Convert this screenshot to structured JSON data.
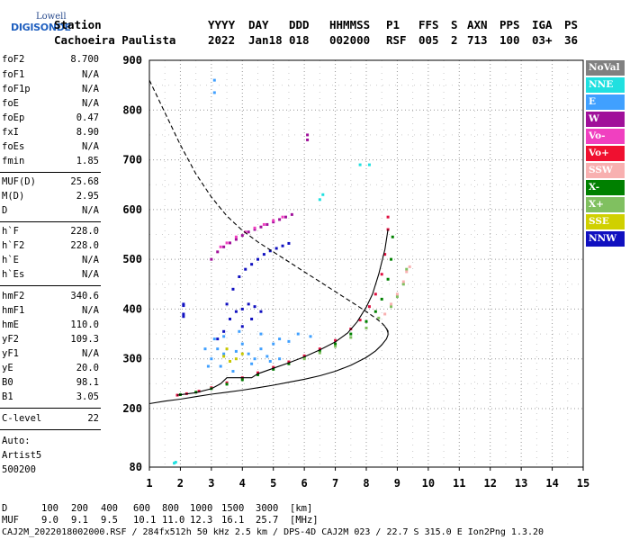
{
  "logo": {
    "line1": "Lowell",
    "line2": "DIGISONDE"
  },
  "header": {
    "row1": {
      "station": "Station",
      "yyyy": "YYYY",
      "day": "DAY",
      "ddd": "DDD",
      "hhmmss": "HHMMSS",
      "p1": "P1",
      "ffs": "FFS",
      "s": "S",
      "axn": "AXN",
      "pps": "PPS",
      "iga": "IGA",
      "ps": "PS"
    },
    "row2": {
      "station": "Cachoeira Paulista",
      "yyyy": "2022",
      "day": "Jan18",
      "ddd": "018",
      "hhmmss": "002000",
      "p1": "RSF",
      "ffs": "005",
      "s": "2",
      "axn": "713",
      "pps": "100",
      "iga": "03+",
      "ps": "36"
    }
  },
  "params": {
    "group1": [
      {
        "label": "foF2",
        "value": "8.700"
      },
      {
        "label": "foF1",
        "value": "N/A"
      },
      {
        "label": "foF1p",
        "value": "N/A"
      },
      {
        "label": "foE",
        "value": "N/A"
      },
      {
        "label": "foEp",
        "value": "0.47"
      },
      {
        "label": "fxI",
        "value": "8.90"
      },
      {
        "label": "foEs",
        "value": "N/A"
      },
      {
        "label": "fmin",
        "value": "1.85"
      }
    ],
    "group2": [
      {
        "label": "MUF(D)",
        "value": "25.68"
      },
      {
        "label": "M(D)",
        "value": "2.95"
      },
      {
        "label": "D",
        "value": "N/A"
      }
    ],
    "group3": [
      {
        "label": "h`F",
        "value": "228.0"
      },
      {
        "label": "h`F2",
        "value": "228.0"
      },
      {
        "label": "h`E",
        "value": "N/A"
      },
      {
        "label": "h`Es",
        "value": "N/A"
      }
    ],
    "group4": [
      {
        "label": "hmF2",
        "value": "340.6"
      },
      {
        "label": "hmF1",
        "value": "N/A"
      },
      {
        "label": "hmE",
        "value": "110.0"
      },
      {
        "label": "yF2",
        "value": "109.3"
      },
      {
        "label": "yF1",
        "value": "N/A"
      },
      {
        "label": "yE",
        "value": "20.0"
      },
      {
        "label": "B0",
        "value": "98.1"
      },
      {
        "label": "B1",
        "value": "3.05"
      }
    ],
    "group5": [
      {
        "label": "C-level",
        "value": "22"
      }
    ],
    "auto": [
      "Auto:",
      "Artist5",
      "500200"
    ]
  },
  "legend": [
    {
      "label": "NoVal",
      "bg": "#808080",
      "fg": "#ffffff"
    },
    {
      "label": "NNE",
      "bg": "#20e0e0",
      "fg": "#ffffff"
    },
    {
      "label": "E",
      "bg": "#40a0ff",
      "fg": "#ffffff"
    },
    {
      "label": "W",
      "bg": "#a0109a",
      "fg": "#ffffff"
    },
    {
      "label": "Vo-",
      "bg": "#f040c0",
      "fg": "#ffffff"
    },
    {
      "label": "Vo+",
      "bg": "#f01030",
      "fg": "#ffffff"
    },
    {
      "label": "SSW",
      "bg": "#f8b0b0",
      "fg": "#ffffff"
    },
    {
      "label": "X-",
      "bg": "#008000",
      "fg": "#ffffff"
    },
    {
      "label": "X+",
      "bg": "#80c060",
      "fg": "#ffffff"
    },
    {
      "label": "SSE",
      "bg": "#d0d000",
      "fg": "#ffffff"
    },
    {
      "label": "NNW",
      "bg": "#1010c0",
      "fg": "#ffffff"
    }
  ],
  "chart_data": {
    "type": "scatter",
    "x_ticks": [
      1,
      2,
      3,
      4,
      5,
      6,
      7,
      8,
      9,
      10,
      11,
      12,
      13,
      14,
      15
    ],
    "y_ticks": [
      80,
      200,
      300,
      400,
      500,
      600,
      700,
      800,
      900
    ],
    "xlim": [
      1,
      15
    ],
    "ylim": [
      80,
      900
    ],
    "y_mapping": "piecewise: 80-200 compressed, 200-900 linear",
    "grid": true,
    "series": [
      {
        "color_ref": "Vo+",
        "color": "#e01040",
        "points": [
          [
            1.9,
            227
          ],
          [
            2.2,
            230
          ],
          [
            2.6,
            235
          ],
          [
            3.0,
            242
          ],
          [
            3.5,
            252
          ],
          [
            4.0,
            262
          ],
          [
            4.5,
            272
          ],
          [
            5.0,
            283
          ],
          [
            5.5,
            294
          ],
          [
            6.0,
            306
          ],
          [
            6.5,
            320
          ],
          [
            7.0,
            337
          ],
          [
            7.5,
            360
          ],
          [
            7.8,
            378
          ],
          [
            8.1,
            405
          ],
          [
            8.3,
            430
          ],
          [
            8.5,
            470
          ],
          [
            8.6,
            510
          ],
          [
            8.7,
            560
          ],
          [
            8.7,
            585
          ]
        ]
      },
      {
        "color_ref": "X-",
        "color": "#008000",
        "points": [
          [
            2.0,
            228
          ],
          [
            2.5,
            233
          ],
          [
            3.0,
            240
          ],
          [
            3.5,
            249
          ],
          [
            4.0,
            258
          ],
          [
            4.5,
            268
          ],
          [
            5.0,
            279
          ],
          [
            5.5,
            290
          ],
          [
            6.0,
            302
          ],
          [
            6.5,
            315
          ],
          [
            7.0,
            330
          ],
          [
            7.5,
            350
          ],
          [
            8.0,
            375
          ],
          [
            8.3,
            395
          ],
          [
            8.5,
            420
          ],
          [
            8.7,
            460
          ],
          [
            8.8,
            500
          ],
          [
            8.85,
            545
          ]
        ]
      },
      {
        "color_ref": "X+",
        "color": "#80c060",
        "points": [
          [
            6.0,
            300
          ],
          [
            6.5,
            312
          ],
          [
            7.0,
            325
          ],
          [
            7.5,
            343
          ],
          [
            8.0,
            362
          ],
          [
            8.4,
            382
          ],
          [
            8.8,
            405
          ],
          [
            9.0,
            425
          ],
          [
            9.2,
            450
          ],
          [
            9.3,
            480
          ]
        ]
      },
      {
        "color_ref": "SSW",
        "color": "#f8b0b0",
        "points": [
          [
            8.6,
            390
          ],
          [
            8.8,
            410
          ],
          [
            9.0,
            430
          ],
          [
            9.2,
            455
          ],
          [
            9.3,
            475
          ],
          [
            9.4,
            485
          ]
        ]
      },
      {
        "color_ref": "E",
        "color": "#40a0ff",
        "points": [
          [
            3.0,
            300
          ],
          [
            3.2,
            320
          ],
          [
            3.4,
            310
          ],
          [
            3.6,
            295
          ],
          [
            3.8,
            315
          ],
          [
            4.0,
            330
          ],
          [
            4.2,
            310
          ],
          [
            4.4,
            300
          ],
          [
            4.6,
            320
          ],
          [
            4.8,
            305
          ],
          [
            5.0,
            330
          ],
          [
            5.2,
            300
          ],
          [
            5.5,
            335
          ],
          [
            5.8,
            350
          ],
          [
            6.2,
            345
          ],
          [
            3.1,
            340
          ],
          [
            3.4,
            345
          ],
          [
            3.9,
            355
          ],
          [
            4.6,
            350
          ],
          [
            5.2,
            340
          ],
          [
            2.9,
            285
          ],
          [
            3.3,
            285
          ],
          [
            3.7,
            275
          ],
          [
            4.3,
            290
          ],
          [
            4.9,
            295
          ],
          [
            3.1,
            860
          ],
          [
            3.1,
            835
          ],
          [
            2.8,
            320
          ]
        ]
      },
      {
        "color_ref": "NNW",
        "color": "#1010c0",
        "points": [
          [
            3.5,
            410
          ],
          [
            3.7,
            440
          ],
          [
            3.9,
            465
          ],
          [
            4.1,
            480
          ],
          [
            4.3,
            490
          ],
          [
            4.5,
            500
          ],
          [
            4.7,
            510
          ],
          [
            4.9,
            517
          ],
          [
            5.1,
            522
          ],
          [
            5.3,
            527
          ],
          [
            5.5,
            532
          ],
          [
            3.6,
            380
          ],
          [
            3.8,
            395
          ],
          [
            4.0,
            400
          ],
          [
            4.2,
            410
          ],
          [
            4.4,
            405
          ],
          [
            4.6,
            395
          ],
          [
            3.2,
            340
          ],
          [
            3.4,
            355
          ],
          [
            4.0,
            365
          ],
          [
            4.3,
            380
          ],
          [
            2.1,
            390
          ],
          [
            2.1,
            385
          ],
          [
            2.1,
            410
          ],
          [
            2.1,
            407
          ]
        ]
      },
      {
        "color_ref": "W",
        "color": "#a0109a",
        "points": [
          [
            3.0,
            500
          ],
          [
            3.2,
            515
          ],
          [
            3.4,
            525
          ],
          [
            3.6,
            533
          ],
          [
            3.8,
            540
          ],
          [
            4.0,
            548
          ],
          [
            4.2,
            555
          ],
          [
            4.4,
            560
          ],
          [
            4.6,
            565
          ],
          [
            4.8,
            570
          ],
          [
            5.0,
            575
          ],
          [
            5.2,
            580
          ],
          [
            5.4,
            585
          ],
          [
            5.6,
            590
          ],
          [
            6.1,
            740
          ],
          [
            6.1,
            750
          ]
        ]
      },
      {
        "color_ref": "Vo-",
        "color": "#f040c0",
        "points": [
          [
            3.3,
            525
          ],
          [
            3.5,
            533
          ],
          [
            3.8,
            545
          ],
          [
            4.1,
            555
          ],
          [
            4.4,
            563
          ],
          [
            4.7,
            570
          ],
          [
            5.0,
            578
          ],
          [
            5.3,
            585
          ]
        ]
      },
      {
        "color_ref": "SSE",
        "color": "#c8c800",
        "points": [
          [
            3.4,
            305
          ],
          [
            3.6,
            295
          ],
          [
            3.8,
            300
          ],
          [
            4.0,
            310
          ],
          [
            3.5,
            320
          ]
        ]
      },
      {
        "color_ref": "NNE",
        "color": "#20e0e0",
        "points": [
          [
            1.8,
            88
          ],
          [
            1.85,
            90
          ],
          [
            6.5,
            620
          ],
          [
            6.6,
            630
          ],
          [
            7.8,
            690
          ],
          [
            8.1,
            690
          ]
        ]
      }
    ],
    "curves": [
      {
        "name": "",
        "style": "solid",
        "color": "#000000",
        "points": [
          [
            1,
            210
          ],
          [
            1.5,
            215
          ],
          [
            2,
            219
          ],
          [
            2.5,
            224
          ],
          [
            3,
            229
          ],
          [
            3.5,
            233
          ],
          [
            4,
            237
          ],
          [
            4.5,
            242
          ],
          [
            5,
            247
          ],
          [
            5.5,
            253
          ],
          [
            6,
            259
          ],
          [
            6.5,
            266
          ],
          [
            7,
            275
          ],
          [
            7.5,
            287
          ],
          [
            8,
            303
          ],
          [
            8.3,
            316
          ],
          [
            8.5,
            328
          ],
          [
            8.65,
            340
          ],
          [
            8.7,
            348
          ],
          [
            8.7,
            356
          ],
          [
            8.6,
            365
          ]
        ]
      },
      {
        "name": "",
        "style": "dashed",
        "color": "#000000",
        "points": [
          [
            1,
            860
          ],
          [
            1.5,
            795
          ],
          [
            2,
            730
          ],
          [
            2.5,
            672
          ],
          [
            3,
            625
          ],
          [
            3.5,
            587
          ],
          [
            4,
            558
          ],
          [
            4.5,
            535
          ],
          [
            5,
            515
          ],
          [
            5.5,
            495
          ],
          [
            6,
            475
          ],
          [
            6.5,
            455
          ],
          [
            7,
            435
          ],
          [
            7.5,
            415
          ],
          [
            8,
            395
          ],
          [
            8.3,
            382
          ],
          [
            8.5,
            372
          ],
          [
            8.65,
            362
          ],
          [
            8.7,
            352
          ]
        ]
      },
      {
        "name": "",
        "style": "solid",
        "color": "#000000",
        "points": [
          [
            1.9,
            227
          ],
          [
            2.5,
            232
          ],
          [
            3.0,
            240
          ],
          [
            3.3,
            250
          ],
          [
            3.5,
            262
          ],
          [
            3.7,
            262
          ],
          [
            4.0,
            262
          ],
          [
            4.3,
            262
          ],
          [
            4.5,
            270
          ],
          [
            5,
            281
          ],
          [
            5.5,
            292
          ],
          [
            6,
            304
          ],
          [
            6.5,
            318
          ],
          [
            7,
            334
          ],
          [
            7.4,
            352
          ],
          [
            7.7,
            374
          ],
          [
            8.0,
            404
          ],
          [
            8.2,
            430
          ],
          [
            8.4,
            470
          ],
          [
            8.6,
            520
          ],
          [
            8.7,
            560
          ]
        ]
      }
    ]
  },
  "footer": {
    "d_label": "D",
    "d_values": [
      "100",
      "200",
      "400",
      "600",
      "800",
      "1000",
      "1500",
      "3000",
      "[km]"
    ],
    "muf_label": "MUF",
    "muf_values": [
      "9.0",
      "9.1",
      "9.5",
      "10.1",
      "11.0",
      "12.3",
      "16.1",
      "25.7",
      "[MHz]"
    ],
    "file_line": "CAJ2M_2022018002000.RSF / 284fx512h 50 kHz 2.5 km / DPS-4D CAJ2M 023 / 22.7 S 315.0 E Ion2Png 1.3.20"
  }
}
